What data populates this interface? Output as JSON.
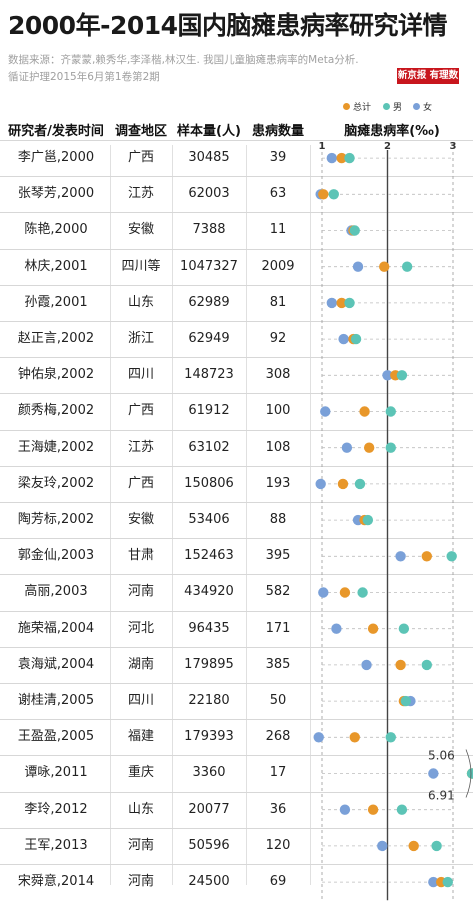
{
  "title": "2000年-2014国内脑瘫患病率研究详情",
  "source_line1": "数据来源：齐蒙蒙,赖秀华,李泽楷,林汉生. 我国儿童脑瘫患病率的Meta分析.",
  "source_line2": "循证护理2015年6月第1卷第2期",
  "logo_text": "新京报 有理数",
  "headers": {
    "researcher": "研究者/发表时间",
    "region": "调查地区",
    "sample": "样本量(人)",
    "cases": "患病数量",
    "rate": "脑瘫患病率(‰)"
  },
  "legend": [
    {
      "name": "总计",
      "color": "#e8972a"
    },
    {
      "name": "男",
      "color": "#5cc4b6"
    },
    {
      "name": "女",
      "color": "#7aa0d8"
    }
  ],
  "annotations": {
    "high": "5.06",
    "low": "6.91"
  },
  "chart_data": {
    "type": "dot",
    "xlabel": "脑瘫患病率(‰)",
    "xlim": [
      1,
      3
    ],
    "xticks": [
      "1",
      "2",
      "3"
    ],
    "reference_line": 2,
    "series_order": [
      "女",
      "男",
      "总计"
    ],
    "rows": [
      {
        "researcher": "李广邕,2000",
        "region": "广西",
        "sample": "30485",
        "cases": "39",
        "female": 1.15,
        "male": 1.42,
        "total": 1.3
      },
      {
        "researcher": "张琴芳,2000",
        "region": "江苏",
        "sample": "62003",
        "cases": "63",
        "female": 0.98,
        "male": 1.18,
        "total": 1.02
      },
      {
        "researcher": "陈艳,2000",
        "region": "安徽",
        "sample": "7388",
        "cases": "11",
        "female": 1.45,
        "male": 1.5,
        "total": 1.48
      },
      {
        "researcher": "林庆,2001",
        "region": "四川等",
        "sample": "1047327",
        "cases": "2009",
        "female": 1.55,
        "male": 2.3,
        "total": 1.95
      },
      {
        "researcher": "孙霞,2001",
        "region": "山东",
        "sample": "62989",
        "cases": "81",
        "female": 1.15,
        "male": 1.42,
        "total": 1.3
      },
      {
        "researcher": "赵正言,2002",
        "region": "浙江",
        "sample": "62949",
        "cases": "92",
        "female": 1.33,
        "male": 1.52,
        "total": 1.48
      },
      {
        "researcher": "钟佑泉,2002",
        "region": "四川",
        "sample": "148723",
        "cases": "308",
        "female": 2.0,
        "male": 2.22,
        "total": 2.12
      },
      {
        "researcher": "颜秀梅,2002",
        "region": "广西",
        "sample": "61912",
        "cases": "100",
        "female": 1.05,
        "male": 2.05,
        "total": 1.65
      },
      {
        "researcher": "王海婕,2002",
        "region": "江苏",
        "sample": "63102",
        "cases": "108",
        "female": 1.38,
        "male": 2.05,
        "total": 1.72
      },
      {
        "researcher": "梁友玲,2002",
        "region": "广西",
        "sample": "150806",
        "cases": "193",
        "female": 0.98,
        "male": 1.58,
        "total": 1.32
      },
      {
        "researcher": "陶芳标,2002",
        "region": "安徽",
        "sample": "53406",
        "cases": "88",
        "female": 1.55,
        "male": 1.7,
        "total": 1.65
      },
      {
        "researcher": "郭金仙,2003",
        "region": "甘肃",
        "sample": "152463",
        "cases": "395",
        "female": 2.2,
        "male": 2.98,
        "total": 2.6
      },
      {
        "researcher": "高丽,2003",
        "region": "河南",
        "sample": "434920",
        "cases": "582",
        "female": 1.02,
        "male": 1.62,
        "total": 1.35
      },
      {
        "researcher": "施荣福,2004",
        "region": "河北",
        "sample": "96435",
        "cases": "171",
        "female": 1.22,
        "male": 2.25,
        "total": 1.78
      },
      {
        "researcher": "袁海斌,2004",
        "region": "湖南",
        "sample": "179895",
        "cases": "385",
        "female": 1.68,
        "male": 2.6,
        "total": 2.2
      },
      {
        "researcher": "谢桂清,2005",
        "region": "四川",
        "sample": "22180",
        "cases": "50",
        "female": 2.35,
        "male": 2.28,
        "total": 2.25
      },
      {
        "researcher": "王盈盈,2005",
        "region": "福建",
        "sample": "179393",
        "cases": "268",
        "female": 0.95,
        "male": 2.05,
        "total": 1.5
      },
      {
        "researcher": "谭咏,2011",
        "region": "重庆",
        "sample": "3360",
        "cases": "17",
        "female": 2.7,
        "male": 5.06,
        "total": 6.91
      },
      {
        "researcher": "李玲,2012",
        "region": "山东",
        "sample": "20077",
        "cases": "36",
        "female": 1.35,
        "male": 2.22,
        "total": 1.78
      },
      {
        "researcher": "王军,2013",
        "region": "河南",
        "sample": "50596",
        "cases": "120",
        "female": 1.92,
        "male": 2.75,
        "total": 2.4
      },
      {
        "researcher": "宋舜意,2014",
        "region": "河南",
        "sample": "24500",
        "cases": "69",
        "female": 2.7,
        "male": 2.92,
        "total": 2.82
      }
    ]
  }
}
